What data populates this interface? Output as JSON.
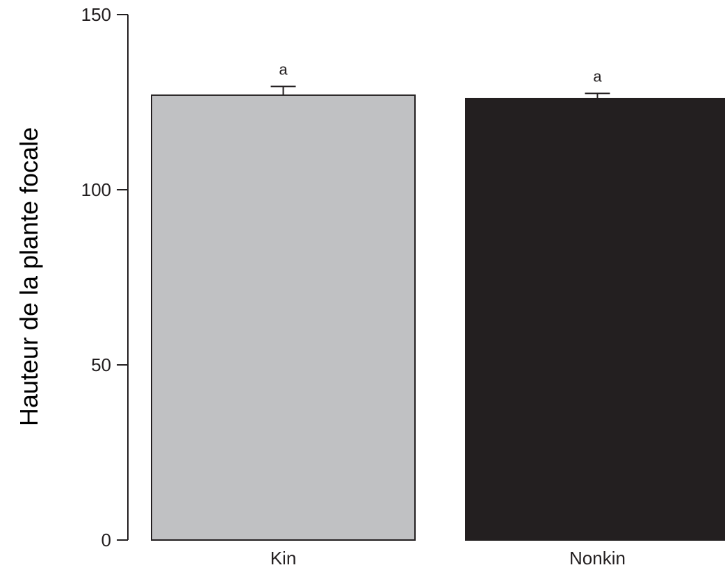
{
  "chart_data": {
    "type": "bar",
    "categories": [
      "Kin",
      "Nonkin"
    ],
    "values": [
      127,
      126
    ],
    "error_upper": [
      129.5,
      127.5
    ],
    "significance_labels": [
      "a",
      "a"
    ],
    "bar_colors": [
      "#c0c1c3",
      "#231f20"
    ],
    "title": "",
    "xlabel": "",
    "ylabel": "Hauteur de la plante focale",
    "ylim": [
      0,
      150
    ],
    "yticks": [
      0,
      50,
      100,
      150
    ],
    "ytick_labels": [
      "0",
      "50",
      "100",
      "150"
    ],
    "grid": false,
    "legend": false
  }
}
